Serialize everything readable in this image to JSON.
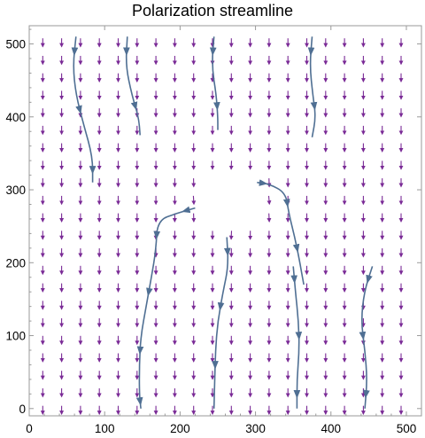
{
  "chart_data": {
    "type": "vector-field-streamline",
    "title": "Polarization streamline",
    "xlabel": "",
    "ylabel": "",
    "xlim": [
      0,
      520
    ],
    "ylim": [
      -10,
      525
    ],
    "xticks": [
      0,
      100,
      200,
      300,
      400,
      500
    ],
    "yticks": [
      0,
      100,
      200,
      300,
      400,
      500
    ],
    "grid": false,
    "colors": {
      "strong_arrows": "#e03030",
      "weak_arrows": "#7a2a96",
      "streamlines": "#4f6f93",
      "frame": "#9a9a9a"
    },
    "field": {
      "description_source": "dipole-like polarization field around a void",
      "center": [
        270,
        285
      ],
      "void_radius": 38,
      "grid_step_x": 25,
      "grid_step_y": 24,
      "strong_threshold": 0.55
    },
    "streamlines": [
      {
        "points": [
          [
            62,
            510
          ],
          [
            58,
            470
          ],
          [
            62,
            430
          ],
          [
            72,
            390
          ],
          [
            84,
            345
          ],
          [
            84,
            310
          ]
        ]
      },
      {
        "points": [
          [
            130,
            510
          ],
          [
            128,
            470
          ],
          [
            136,
            430
          ],
          [
            145,
            400
          ],
          [
            147,
            375
          ]
        ]
      },
      {
        "points": [
          [
            245,
            510
          ],
          [
            242,
            470
          ],
          [
            248,
            430
          ],
          [
            250,
            400
          ],
          [
            250,
            382
          ]
        ]
      },
      {
        "points": [
          [
            375,
            510
          ],
          [
            372,
            470
          ],
          [
            376,
            430
          ],
          [
            380,
            400
          ],
          [
            375,
            372
          ]
        ]
      },
      {
        "points": [
          [
            302,
            310
          ],
          [
            318,
            308
          ],
          [
            340,
            296
          ],
          [
            344,
            268
          ],
          [
            352,
            235
          ],
          [
            358,
            205
          ],
          [
            364,
            170
          ]
        ]
      },
      {
        "points": [
          [
            220,
            275
          ],
          [
            196,
            268
          ],
          [
            170,
            258
          ],
          [
            168,
            218
          ],
          [
            162,
            180
          ],
          [
            155,
            140
          ],
          [
            148,
            100
          ],
          [
            146,
            60
          ],
          [
            146,
            20
          ],
          [
            148,
            0
          ]
        ]
      },
      {
        "points": [
          [
            262,
            235
          ],
          [
            264,
            195
          ],
          [
            257,
            160
          ],
          [
            250,
            120
          ],
          [
            247,
            80
          ],
          [
            246,
            40
          ],
          [
            245,
            0
          ]
        ]
      },
      {
        "points": [
          [
            350,
            195
          ],
          [
            353,
            160
          ],
          [
            357,
            120
          ],
          [
            358,
            80
          ],
          [
            355,
            40
          ],
          [
            355,
            0
          ]
        ]
      },
      {
        "points": [
          [
            455,
            195
          ],
          [
            444,
            160
          ],
          [
            440,
            120
          ],
          [
            445,
            80
          ],
          [
            448,
            40
          ],
          [
            445,
            0
          ]
        ]
      }
    ]
  }
}
